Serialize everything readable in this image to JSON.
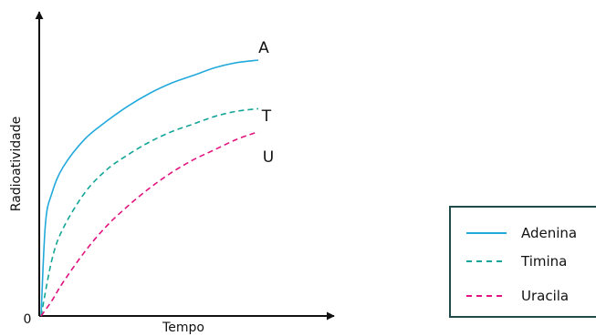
{
  "chart_data": {
    "type": "line",
    "xlabel": "Tempo",
    "ylabel": "Radioatividade",
    "origin_label": "0",
    "x_ticks": false,
    "y_ticks": false,
    "grid": false,
    "legend_position": "bottom-right",
    "series": [
      {
        "name": "Adenina",
        "end_label": "A",
        "color": "#22a9dc",
        "style": "solid",
        "x": [
          0,
          0.02,
          0.05,
          0.1,
          0.2,
          0.3,
          0.4,
          0.5,
          0.6,
          0.7,
          0.8,
          0.9,
          1.0
        ],
        "y": [
          0,
          0.36,
          0.48,
          0.58,
          0.69,
          0.76,
          0.82,
          0.87,
          0.91,
          0.94,
          0.97,
          0.99,
          1.0
        ]
      },
      {
        "name": "Timina",
        "end_label": "T",
        "color": "#13a597",
        "style": "dashed",
        "x": [
          0,
          0.05,
          0.1,
          0.2,
          0.3,
          0.4,
          0.5,
          0.6,
          0.7,
          0.8,
          0.9,
          1.0
        ],
        "y": [
          0,
          0.22,
          0.34,
          0.48,
          0.57,
          0.63,
          0.68,
          0.72,
          0.75,
          0.78,
          0.8,
          0.81
        ]
      },
      {
        "name": "Uracila",
        "end_label": "U",
        "color": "#e2127f",
        "style": "dashed",
        "x": [
          0,
          0.05,
          0.1,
          0.2,
          0.3,
          0.4,
          0.5,
          0.6,
          0.7,
          0.8,
          0.9,
          1.0
        ],
        "y": [
          0,
          0.06,
          0.13,
          0.25,
          0.35,
          0.43,
          0.5,
          0.56,
          0.61,
          0.65,
          0.69,
          0.72
        ]
      }
    ]
  },
  "legend": {
    "border_color": "#1e4a4a",
    "items": [
      {
        "label": "Adenina",
        "color": "#22a9dc",
        "style": "solid"
      },
      {
        "label": "Timina",
        "color": "#13a597",
        "style": "dashed"
      },
      {
        "label": "Uracila",
        "color": "#e2127f",
        "style": "dashed"
      }
    ]
  }
}
